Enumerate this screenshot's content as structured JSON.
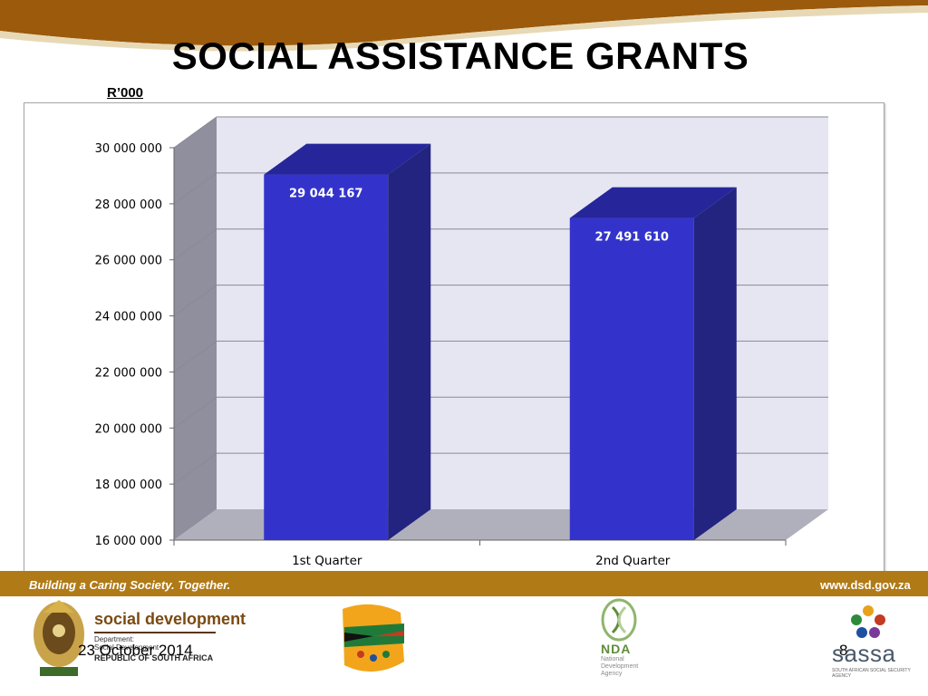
{
  "slide": {
    "title": "SOCIAL ASSISTANCE GRANTS",
    "unit_label": "R’000",
    "footer_left": "Building a Caring Society. Together.",
    "footer_right": "www.dsd.gov.za",
    "date": "23 October 2014",
    "page_number": "8"
  },
  "logos": {
    "dsd_name": "social development",
    "dsd_department": "Department:",
    "dsd_department_name": "Social Development",
    "dsd_country": "REPUBLIC OF SOUTH AFRICA",
    "nda_abbr": "NDA",
    "nda_line1": "National",
    "nda_line2": "Development",
    "nda_line3": "Agency",
    "sassa_name": "sassa",
    "sassa_tagline": "SOUTH AFRICAN SOCIAL SECURITY AGENCY"
  },
  "colors": {
    "bar_front": "#3333cc",
    "bar_side": "#232380",
    "bar_top": "#26269a",
    "plot_back": "#e6e6f3",
    "plot_wall": "#8f8f9e",
    "plot_floor": "#b0b0bc",
    "band": "#b07a17"
  },
  "chart_data": {
    "type": "bar",
    "three_d": true,
    "categories": [
      "1st Quarter",
      "2nd Quarter"
    ],
    "values": [
      29044167,
      27491610
    ],
    "value_labels": [
      "29 044 167",
      "27 491 610"
    ],
    "ylim": [
      16000000,
      30000000
    ],
    "yticks": [
      16000000,
      18000000,
      20000000,
      22000000,
      24000000,
      26000000,
      28000000,
      30000000
    ],
    "ytick_labels": [
      "16 000 000",
      "18 000 000",
      "20 000 000",
      "22 000 000",
      "24 000 000",
      "26 000 000",
      "28 000 000",
      "30 000 000"
    ],
    "grid": true,
    "legend": "none"
  }
}
